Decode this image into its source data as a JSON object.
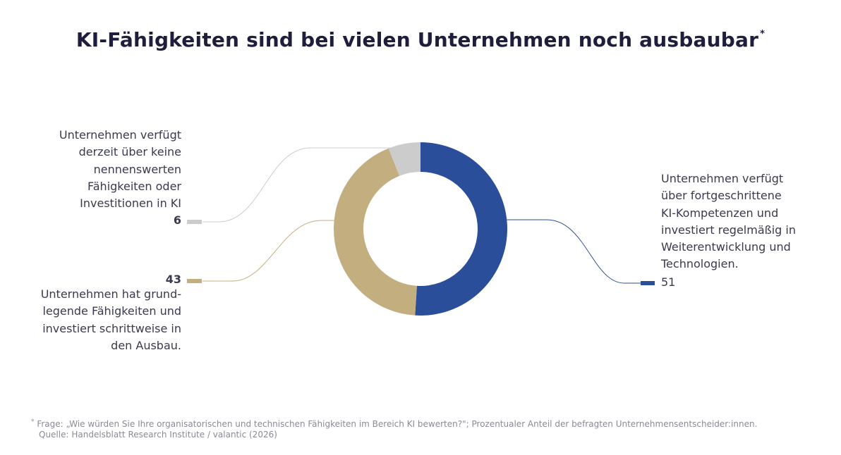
{
  "title": "KI-Fähigkeiten sind bei vielen Unternehmen noch ausbaubar",
  "title_marker": "*",
  "chart_data": {
    "type": "pie",
    "variant": "donut",
    "unit": "%",
    "slices": [
      {
        "key": "advanced",
        "value": 51,
        "label": "Unternehmen verfügt\nüber fortgeschrittene\nKI-Kompetenzen und\ninvestiert regelmäßig in\nWeiterentwicklung und\nTechnologien.",
        "color": "#2b4e9b"
      },
      {
        "key": "basic",
        "value": 43,
        "label": "Unternehmen hat grund-\nlegende Fähigkeiten und\ninvestiert schrittweise in\nden Ausbau.",
        "color": "#c3ae80"
      },
      {
        "key": "none",
        "value": 6,
        "label": "Unternehmen verfügt\nderzeit über keine\nnennenswerten\nFähigkeiten oder\nInvestitionen in KI",
        "color": "#cccccc"
      }
    ]
  },
  "footnote": {
    "marker": "*",
    "question": "Frage: „Wie würden Sie Ihre organisatorischen und technischen Fähigkeiten im Bereich KI bewerten?\"; Prozentualer Anteil der befragten Unternehmensentscheider:innen.",
    "source": "Quelle: Handelsblatt Research Institute / valantic (2026)"
  }
}
